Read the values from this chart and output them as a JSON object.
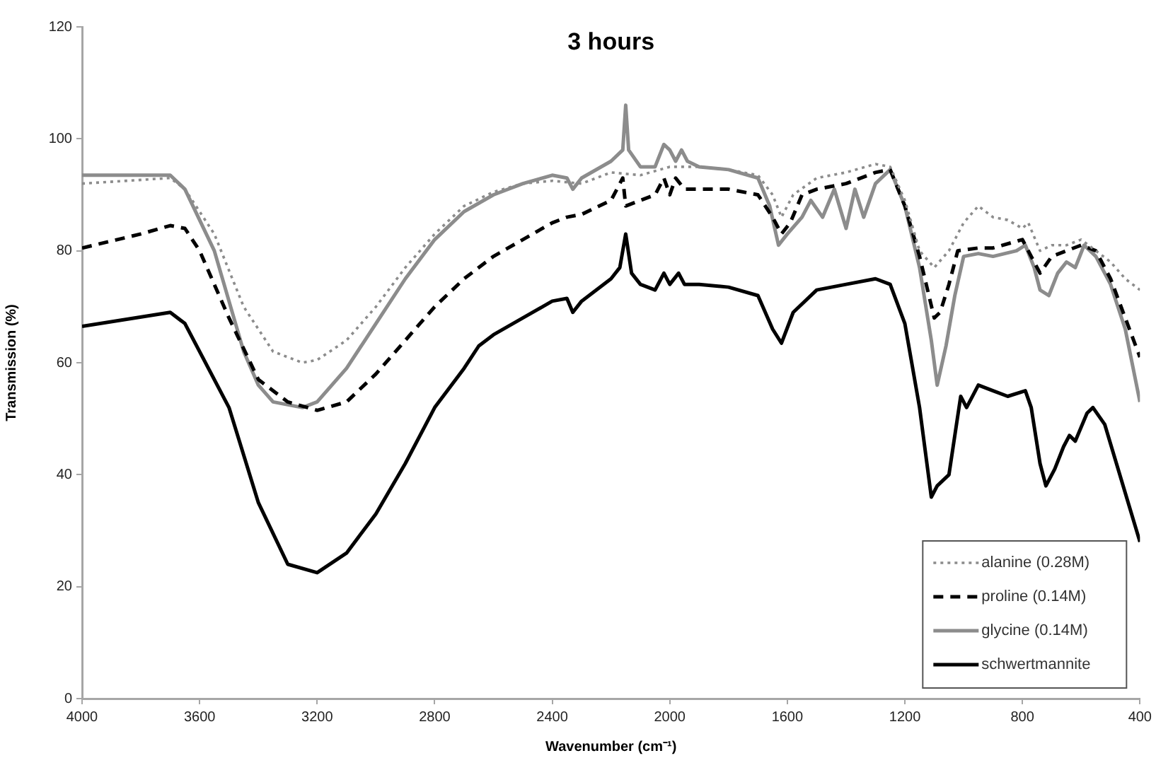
{
  "chart_data": {
    "type": "line",
    "title": "3 hours",
    "xlabel": "Wavenumber (cm⁻¹)",
    "ylabel": "Transmission (%)",
    "xlim": [
      4000,
      400
    ],
    "xticks": [
      4000,
      3600,
      3200,
      2800,
      2400,
      2000,
      1600,
      1200,
      800,
      400
    ],
    "ylim": [
      0,
      120
    ],
    "yticks": [
      0,
      20,
      40,
      60,
      80,
      100,
      120
    ],
    "grid": false,
    "legend": "bottom right",
    "marker": "none",
    "series": [
      {
        "name": "alanine (0.28M)",
        "color": "#8c8c8c",
        "line_style": "dotted",
        "x": [
          4000,
          3700,
          3650,
          3550,
          3450,
          3350,
          3250,
          3200,
          3100,
          3000,
          2900,
          2800,
          2700,
          2600,
          2500,
          2400,
          2300,
          2200,
          2100,
          2000,
          1900,
          1800,
          1700,
          1650,
          1620,
          1580,
          1500,
          1400,
          1300,
          1250,
          1200,
          1150,
          1100,
          1050,
          1000,
          950,
          900,
          850,
          800,
          780,
          740,
          700,
          650,
          600,
          550,
          500,
          450,
          400
        ],
        "values": [
          92,
          93,
          91,
          83,
          70,
          62,
          60,
          60.5,
          64,
          70,
          77,
          83,
          88,
          90.5,
          92,
          92.5,
          92,
          94,
          93.5,
          95,
          95,
          94.5,
          93.5,
          90,
          86,
          90,
          93,
          94,
          95.5,
          95,
          89,
          80,
          77,
          80,
          85,
          88,
          86,
          85.5,
          84,
          85,
          80,
          81,
          81,
          82,
          80,
          78,
          75,
          73
        ]
      },
      {
        "name": "proline (0.14M)",
        "color": "#000000",
        "line_style": "dashed",
        "x": [
          4000,
          3800,
          3700,
          3650,
          3600,
          3500,
          3400,
          3300,
          3200,
          3100,
          3000,
          2900,
          2800,
          2700,
          2600,
          2500,
          2400,
          2350,
          2300,
          2200,
          2160,
          2150,
          2100,
          2050,
          2020,
          2000,
          1980,
          1950,
          1900,
          1800,
          1700,
          1650,
          1620,
          1590,
          1550,
          1500,
          1400,
          1300,
          1250,
          1200,
          1150,
          1100,
          1080,
          1050,
          1020,
          950,
          900,
          800,
          770,
          740,
          700,
          650,
          600,
          550,
          500,
          450,
          400
        ],
        "values": [
          80.5,
          83,
          84.5,
          84,
          80,
          68,
          57,
          53,
          51.5,
          53,
          58,
          64,
          70,
          75,
          79,
          82,
          85,
          86,
          86.5,
          89,
          93,
          88,
          89,
          90,
          93,
          90,
          93,
          91,
          91,
          91,
          90,
          86,
          83,
          85,
          90,
          91,
          92,
          94,
          94.5,
          88,
          79,
          68,
          69,
          74,
          80,
          80.5,
          80.5,
          82,
          79,
          76,
          79,
          80,
          81,
          80,
          75,
          68,
          61
        ]
      },
      {
        "name": "glycine (0.14M)",
        "color": "#8c8c8c",
        "line_style": "solid",
        "x": [
          4000,
          3700,
          3650,
          3550,
          3450,
          3400,
          3350,
          3250,
          3200,
          3100,
          3000,
          2900,
          2800,
          2700,
          2600,
          2500,
          2400,
          2350,
          2330,
          2300,
          2200,
          2160,
          2150,
          2140,
          2100,
          2050,
          2020,
          2000,
          1980,
          1960,
          1940,
          1900,
          1800,
          1700,
          1660,
          1630,
          1600,
          1550,
          1520,
          1480,
          1440,
          1400,
          1370,
          1340,
          1300,
          1250,
          1200,
          1150,
          1110,
          1090,
          1060,
          1030,
          1000,
          950,
          900,
          820,
          790,
          760,
          740,
          710,
          680,
          650,
          620,
          590,
          550,
          500,
          450,
          400
        ],
        "values": [
          93.5,
          93.5,
          91,
          80,
          62,
          56,
          53,
          52,
          53,
          59,
          67,
          75,
          82,
          87,
          90,
          92,
          93.5,
          93,
          91,
          93,
          96,
          98,
          106,
          98,
          95,
          95,
          99,
          98,
          96,
          98,
          96,
          95,
          94.5,
          93,
          88,
          81,
          83,
          86,
          89,
          86,
          91,
          84,
          91,
          86,
          92,
          94.5,
          88,
          77,
          64,
          56,
          63,
          72,
          79,
          79.5,
          79,
          80,
          81,
          77,
          73,
          72,
          76,
          78,
          77,
          81,
          79,
          74,
          66,
          53
        ]
      },
      {
        "name": "schwertmannite",
        "color": "#000000",
        "line_style": "solid",
        "x": [
          4000,
          3700,
          3650,
          3500,
          3400,
          3300,
          3200,
          3100,
          3000,
          2900,
          2800,
          2700,
          2650,
          2600,
          2500,
          2400,
          2350,
          2330,
          2300,
          2200,
          2170,
          2150,
          2130,
          2100,
          2050,
          2020,
          2000,
          1970,
          1950,
          1900,
          1800,
          1700,
          1650,
          1620,
          1580,
          1500,
          1400,
          1300,
          1250,
          1200,
          1150,
          1110,
          1090,
          1050,
          1030,
          1010,
          990,
          950,
          900,
          850,
          790,
          770,
          740,
          720,
          690,
          660,
          640,
          620,
          580,
          560,
          520,
          480,
          440,
          400
        ],
        "values": [
          66.5,
          69,
          67,
          52,
          35,
          24,
          22.5,
          26,
          33,
          42,
          52,
          59,
          63,
          65,
          68,
          71,
          71.5,
          69,
          71,
          75,
          77,
          83,
          76,
          74,
          73,
          76,
          74,
          76,
          74,
          74,
          73.5,
          72,
          66,
          63.5,
          69,
          73,
          74,
          75,
          74,
          67,
          52,
          36,
          38,
          40,
          47,
          54,
          52,
          56,
          55,
          54,
          55,
          52,
          42,
          38,
          41,
          45,
          47,
          46,
          51,
          52,
          49,
          42,
          35,
          28
        ]
      }
    ]
  }
}
